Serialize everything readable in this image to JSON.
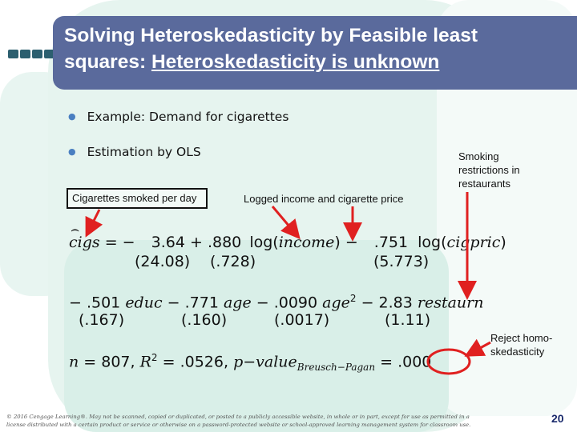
{
  "title": {
    "line1": "Solving Heteroskedasticity by Feasible least",
    "line2_prefix": "squares: ",
    "line2_underlined": "Heteroskedasticity is unknown"
  },
  "bullets": [
    "Example: Demand for cigarettes",
    "Estimation by OLS"
  ],
  "annotations": {
    "cigs_box": "Cigarettes smoked per day",
    "logged": "Logged income and cigarette price",
    "smoking": [
      "Smoking",
      "restrictions in",
      "restaurants"
    ],
    "reject": [
      "Reject homo-",
      "skedasticity"
    ]
  },
  "equation": {
    "lhs": "cigs",
    "row1": {
      "eq": "= −",
      "c0": "3.64",
      "plus": "+",
      "c1": ".880",
      "log1": "log(",
      "var1": "income",
      "close1": ")",
      "minus": "−",
      "c2": ".751",
      "log2": "log(",
      "var2": "cigpric",
      "close2": ")"
    },
    "row1_se": [
      "(24.08)",
      "(.728)",
      "(5.773)"
    ],
    "row2": {
      "m1": "− .501",
      "v1": "educ",
      "m2": "− .771",
      "v2": "age",
      "m3": "− .0090",
      "v3": "age",
      "sup": "2",
      "m4": "− 2.83",
      "v4": "restaurn"
    },
    "row2_se": [
      "(.167)",
      "(.160)",
      "(.0017)",
      "(1.11)"
    ],
    "row3": {
      "n": "n",
      "n_val": "= 807,",
      "r": "R",
      "r_sup": "2",
      "r_val": "= .0526,",
      "p": "p−value",
      "p_sub": "Breusch−Pagan",
      "p_eq": "=",
      "p_val": ".000"
    }
  },
  "footer": {
    "line1": "© 2016 Cengage Learning®. May not be scanned, copied or duplicated, or posted to a publicly accessible website, in whole or in part, except for use as permitted in a",
    "line2": "license distributed with a certain product or service or otherwise on a password-protected website or school-approved learning management system for classroom use."
  },
  "page_number": "20",
  "colors": {
    "title_band": "#5a6a9c",
    "arrow_red": "#e02020",
    "bullet_dot": "#4a7fc1",
    "bg_teal": "#e3f3ee"
  }
}
